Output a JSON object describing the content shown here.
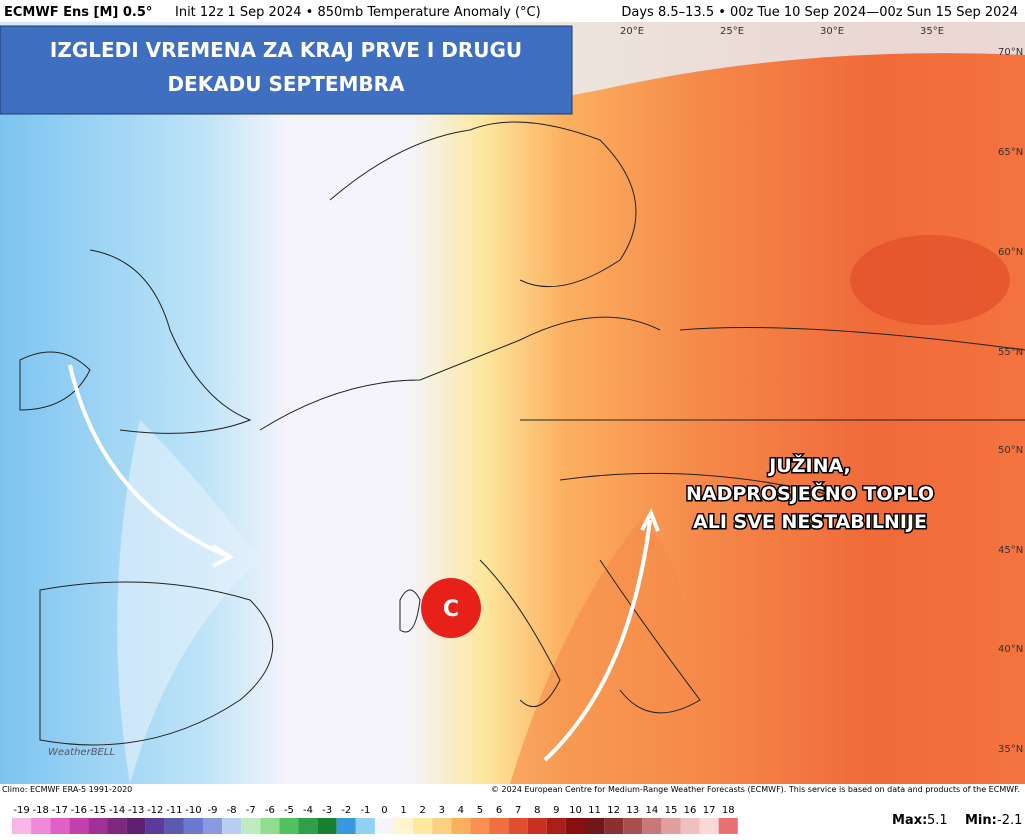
{
  "header": {
    "model": "ECMWF Ens [M] 0.5°",
    "info": "Init 12z 1 Sep 2024 • 850mb Temperature Anomaly (°C)",
    "period": "Days 8.5–13.5 • 00z Tue 10 Sep 2024—00z Sun 15 Sep 2024"
  },
  "title_box": {
    "line1": "IZGLEDI VREMENA ZA KRAJ PRVE I DRUGU",
    "line2": "DEKADU SEPTEMBRA"
  },
  "map": {
    "lon_labels": [
      "20°E",
      "25°E",
      "30°E",
      "35°E"
    ],
    "lat_labels": [
      "70°N",
      "65°N",
      "60°N",
      "55°N",
      "50°N",
      "45°N",
      "40°N",
      "35°N"
    ],
    "annotation": [
      "JUŽINA,",
      "NADPROSJEČNO TOPLO",
      "ALI SVE NESTABILNIJE"
    ],
    "cyclone": "C",
    "logo": "WeatherBELL"
  },
  "footer": {
    "climo": "Climo: ECMWF ERA-5 1991-2020",
    "copyright": "© 2024 European Centre for Medium-Range Weather Forecasts (ECMWF). This service is based on data and products of the ECMWF."
  },
  "colorbar": {
    "ticks": [
      -19,
      -18,
      -17,
      -16,
      -15,
      -14,
      -13,
      -12,
      -11,
      -10,
      -9,
      -8,
      -7,
      -6,
      -5,
      -4,
      -3,
      -2,
      -1,
      0,
      1,
      2,
      3,
      4,
      5,
      6,
      7,
      8,
      9,
      10,
      11,
      12,
      13,
      14,
      15,
      16,
      17,
      18
    ],
    "colors": [
      "#f7b6e6",
      "#f08ad8",
      "#e060c8",
      "#c040b0",
      "#a0309a",
      "#802880",
      "#602070",
      "#5a3a9a",
      "#5a5ab0",
      "#6a7ad0",
      "#8a9ae0",
      "#b8cdf0",
      "#c0ecc0",
      "#90dc90",
      "#50c060",
      "#30a048",
      "#188030",
      "#3a98e0",
      "#90d0f4",
      "#f4f4fa",
      "#fff6d0",
      "#fde8a0",
      "#fcd080",
      "#fbb060",
      "#f99050",
      "#f07040",
      "#e05030",
      "#c83020",
      "#a82018",
      "#881010",
      "#701818",
      "#8a3030",
      "#a85050",
      "#c87878",
      "#e0a0a0",
      "#f0c0c0",
      "#f8d8d8",
      "#e87070"
    ],
    "max_label": "Max:",
    "max": 5.1,
    "min_label": "Min:",
    "min": -2.1
  }
}
